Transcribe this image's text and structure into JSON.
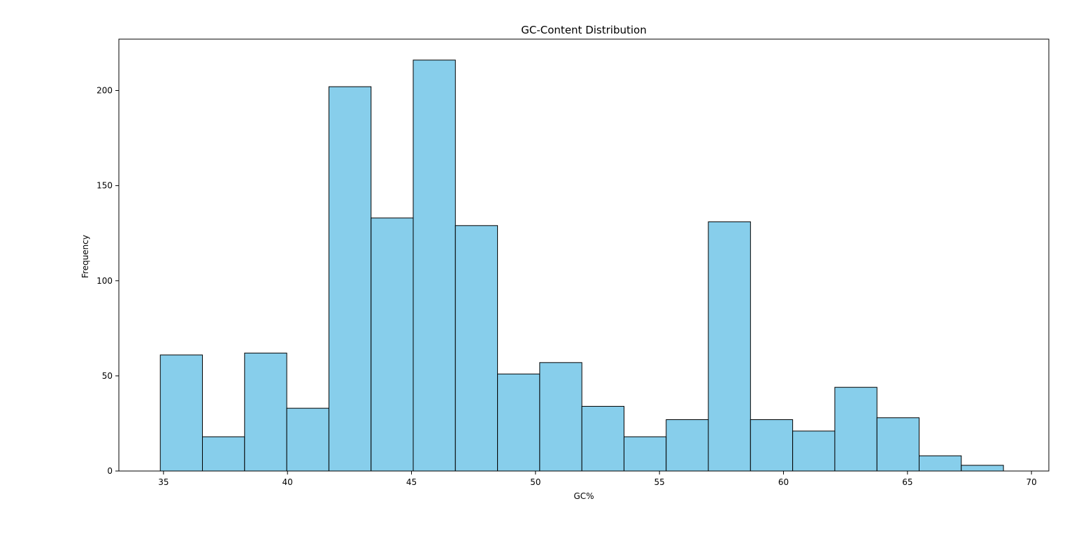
{
  "chart_data": {
    "type": "histogram",
    "title": "GC-Content Distribution",
    "xlabel": "GC%",
    "ylabel": "Frequency",
    "xlim": [
      33.2,
      70.7
    ],
    "ylim": [
      0,
      227
    ],
    "bar_color": "#87ceeb",
    "edge_color": "#000000",
    "bin_edges": [
      34.87,
      36.57,
      38.27,
      39.97,
      41.67,
      43.37,
      45.07,
      46.77,
      48.47,
      50.17,
      51.87,
      53.57,
      55.27,
      56.97,
      58.67,
      60.37,
      62.07,
      63.77,
      65.47,
      67.17,
      68.87
    ],
    "values": [
      61,
      18,
      62,
      33,
      202,
      133,
      216,
      129,
      51,
      57,
      34,
      18,
      27,
      131,
      27,
      21,
      44,
      28,
      8,
      3
    ],
    "xticks": [
      35,
      40,
      45,
      50,
      55,
      60,
      65,
      70
    ],
    "yticks": [
      0,
      50,
      100,
      150,
      200
    ],
    "grid": false,
    "legend": false
  }
}
